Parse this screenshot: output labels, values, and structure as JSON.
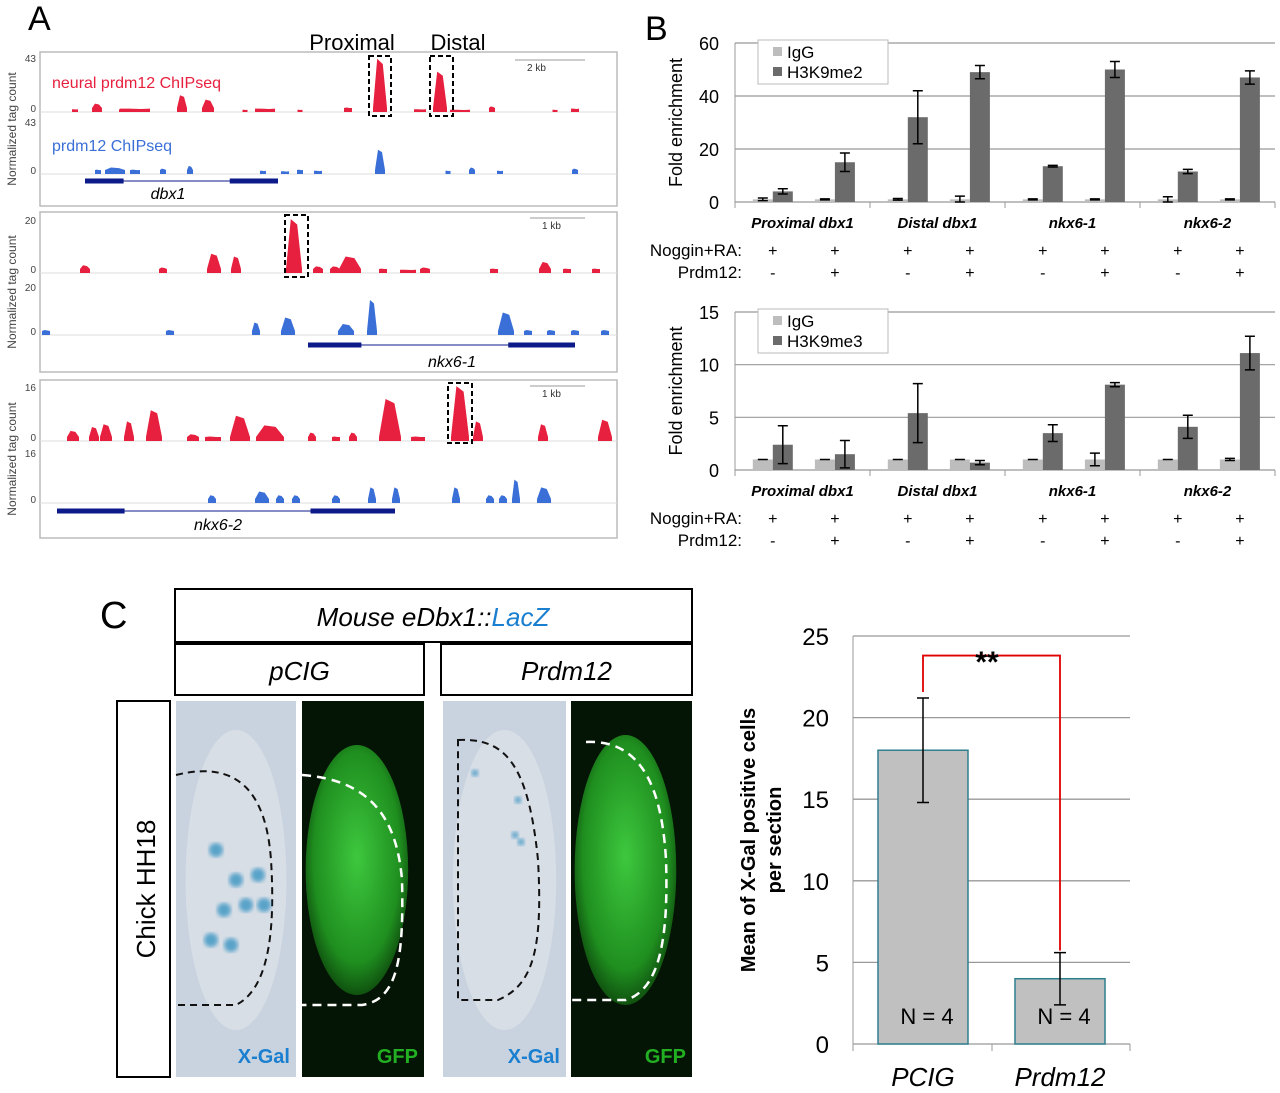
{
  "panel_labels": {
    "a": "A",
    "b": "B",
    "c": "C"
  },
  "colors": {
    "chip_neural": "#e8203f",
    "chip_prdm12": "#3a6fd8",
    "gene": "#0c1a8a",
    "igg": "#bdbdbd",
    "h3k9": "#6b6b6b",
    "bar_c": "#c0c0c0",
    "bar_c_edge": "#2f7f8f",
    "significance": "#e00000",
    "lacz": "#1b7fd0",
    "gfp": "#22b022"
  },
  "panel_a": {
    "region_labels": [
      "Proximal",
      "Distal"
    ],
    "y_axis_label": "Normalized tag count",
    "track_labels": {
      "neural": "neural prdm12 ChIPseq",
      "prdm12": "prdm12 ChIPseq"
    },
    "loci": [
      {
        "gene": "dbx1",
        "ymax": "43",
        "ymin": "0",
        "scale": "2 kb"
      },
      {
        "gene": "nkx6-1",
        "ymax": "20",
        "ymin": "0",
        "scale": "1 kb"
      },
      {
        "gene": "nkx6-2",
        "ymax": "16",
        "ymin": "0",
        "scale": "1 kb"
      }
    ]
  },
  "chart_data": [
    {
      "type": "bar",
      "panel": "B-top",
      "ylabel": "Fold enrichment",
      "ylim": [
        0,
        60
      ],
      "yticks": [
        "0",
        "20",
        "40",
        "60"
      ],
      "grid": true,
      "legend_placement": "top-left",
      "groups": [
        "Proximal dbx1",
        "Distal dbx1",
        "nkx6-1",
        "nkx6-2"
      ],
      "conditions": {
        "row1_label": "Noggin+RA:",
        "row2_label": "Prdm12:",
        "row1": [
          "+",
          "+",
          "+",
          "+",
          "+",
          "+",
          "+",
          "+"
        ],
        "row2": [
          "-",
          "+",
          "-",
          "+",
          "-",
          "+",
          "-",
          "+"
        ]
      },
      "series": [
        {
          "name": "IgG",
          "values": [
            1,
            1,
            1,
            1,
            1,
            1,
            1,
            1
          ],
          "errors": [
            0.5,
            0.2,
            0.3,
            1.2,
            0.2,
            0.2,
            1,
            0.2
          ]
        },
        {
          "name": "H3K9me2",
          "values": [
            4,
            15,
            32,
            49,
            13.5,
            50,
            11.5,
            47
          ],
          "errors": [
            1,
            3.5,
            10,
            2.5,
            0.3,
            3,
            0.8,
            2.5
          ]
        }
      ]
    },
    {
      "type": "bar",
      "panel": "B-bottom",
      "ylabel": "Fold enrichment",
      "ylim": [
        0,
        15
      ],
      "yticks": [
        "0",
        "5",
        "10",
        "15"
      ],
      "grid": true,
      "legend_placement": "top-left",
      "groups": [
        "Proximal dbx1",
        "Distal dbx1",
        "nkx6-1",
        "nkx6-2"
      ],
      "conditions": {
        "row1_label": "Noggin+RA:",
        "row2_label": "Prdm12:",
        "row1": [
          "+",
          "+",
          "+",
          "+",
          "+",
          "+",
          "+",
          "+"
        ],
        "row2": [
          "-",
          "+",
          "-",
          "+",
          "-",
          "+",
          "-",
          "+"
        ]
      },
      "series": [
        {
          "name": "IgG",
          "values": [
            1,
            1,
            1,
            1,
            1,
            1,
            1,
            1
          ],
          "errors": [
            0,
            0,
            0,
            0,
            0,
            0.6,
            0,
            0.1
          ]
        },
        {
          "name": "H3K9me3",
          "values": [
            2.4,
            1.5,
            5.4,
            0.7,
            3.5,
            8.1,
            4.1,
            11.1
          ],
          "errors": [
            1.8,
            1.3,
            2.8,
            0.2,
            0.8,
            0.2,
            1.1,
            1.6
          ]
        }
      ]
    },
    {
      "type": "bar",
      "panel": "C",
      "ylabel": "Mean of X-Gal positive cells per section",
      "ylim": [
        0,
        25
      ],
      "yticks": [
        "0",
        "5",
        "10",
        "15",
        "20",
        "25"
      ],
      "grid": true,
      "categories": [
        "PCIG",
        "Prdm12"
      ],
      "values": [
        18,
        4
      ],
      "errors": [
        3.2,
        1.6
      ],
      "bar_labels": [
        "N = 4",
        "N = 4"
      ],
      "significance": "**"
    }
  ],
  "panel_c": {
    "header_prefix": "Mouse eDbx1::",
    "header_suffix": "LacZ",
    "columns": [
      "pCIG",
      "Prdm12"
    ],
    "row_label": "Chick HH18",
    "image_labels": [
      "X-Gal",
      "GFP",
      "X-Gal",
      "GFP"
    ]
  }
}
